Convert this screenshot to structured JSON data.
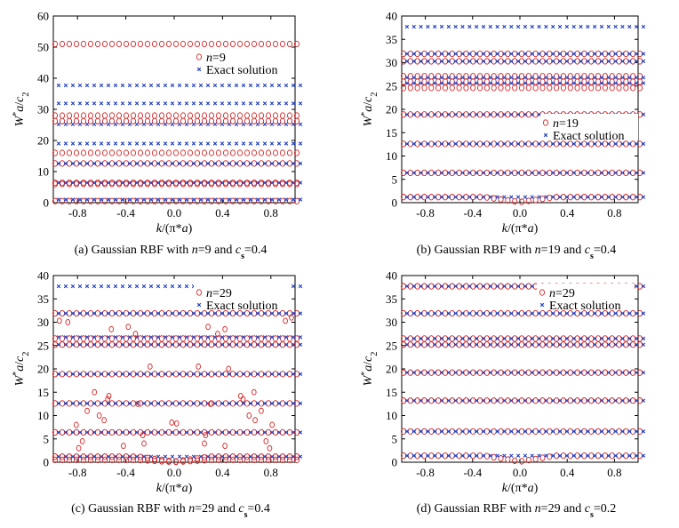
{
  "colors": {
    "model": "#d62728",
    "exact": "#1f3fbf",
    "axis": "#000000"
  },
  "chart_data": [
    {
      "type": "scatter",
      "panel": "a",
      "caption": {
        "prefix": "(a) Gaussian RBF with ",
        "n_label": "n",
        "mid": "=9 and ",
        "c_label": "c",
        "c_sub": "s",
        "suffix": "=0.4"
      },
      "xlabel": {
        "k": "k",
        "pi_open": "/(π*",
        "a": "a",
        "close": ")"
      },
      "ylabel": {
        "W": "W",
        "star": "*",
        "a": "a",
        "slash": "/",
        "c": "c",
        "sub": "2"
      },
      "xlim": [
        -1,
        1
      ],
      "ylim": [
        0,
        60
      ],
      "xticks": [
        "-0.8",
        "-0.4",
        "0.0",
        "0.4",
        "0.8"
      ],
      "yticks": [
        "0",
        "10",
        "20",
        "30",
        "40",
        "50",
        "60"
      ],
      "legend": {
        "placement": "right",
        "model_label": "n",
        "model_value": "=9",
        "exact_label": "Exact solution"
      },
      "series": [
        {
          "name": "n=9",
          "marker": "circle",
          "values": [
            51,
            28,
            26.2,
            16,
            12.6,
            6.4,
            6.0,
            0.5
          ]
        },
        {
          "name": "Exact solution",
          "marker": "x",
          "values": [
            37.7,
            31.9,
            25.2,
            19,
            12.6,
            6.4,
            1
          ]
        }
      ]
    },
    {
      "type": "scatter",
      "panel": "b",
      "caption": {
        "prefix": "(b) Gaussian RBF with ",
        "n_label": "n",
        "mid": "=19 and ",
        "c_label": "c",
        "c_sub": "s",
        "suffix": "=0.4"
      },
      "xlabel": {
        "k": "k",
        "pi_open": "/(π*",
        "a": "a",
        "close": ")"
      },
      "ylabel": {
        "W": "W",
        "star": "*",
        "a": "a",
        "slash": "/",
        "c": "c",
        "sub": "2"
      },
      "xlim": [
        -1,
        1
      ],
      "ylim": [
        0,
        40
      ],
      "xticks": [
        "-0.8",
        "-0.4",
        "0.0",
        "0.4",
        "0.8"
      ],
      "yticks": [
        "0",
        "5",
        "10",
        "15",
        "20",
        "25",
        "30",
        "35",
        "40"
      ],
      "legend": {
        "placement": "right",
        "model_label": "n",
        "model_value": "=19",
        "exact_label": "Exact solution"
      },
      "series": [
        {
          "name": "n=19",
          "marker": "circle",
          "values": [
            31.9,
            30.3,
            27.1,
            25.9,
            24.6,
            18.9,
            12.6,
            6.4,
            1.2
          ]
        },
        {
          "name": "Exact solution",
          "marker": "x",
          "values": [
            37.7,
            31.9,
            30.3,
            26.8,
            25.6,
            18.9,
            12.6,
            6.4,
            1.2
          ]
        }
      ]
    },
    {
      "type": "scatter",
      "panel": "c",
      "caption": {
        "prefix": "(c) Gaussian RBF with ",
        "n_label": "n",
        "mid": "=29 and ",
        "c_label": "c",
        "c_sub": "s",
        "suffix": "=0.4"
      },
      "xlabel": {
        "k": "k",
        "pi_open": "/(π*",
        "a": "a",
        "close": ")"
      },
      "ylabel": {
        "W": "W",
        "star": "*",
        "a": "a",
        "slash": "/",
        "c": "c",
        "sub": "2"
      },
      "xlim": [
        -1,
        1
      ],
      "ylim": [
        0,
        40
      ],
      "xticks": [
        "-0.8",
        "-0.4",
        "0.0",
        "0.4",
        "0.8"
      ],
      "yticks": [
        "0",
        "5",
        "10",
        "15",
        "20",
        "25",
        "30",
        "35",
        "40"
      ],
      "legend": {
        "placement": "right",
        "model_label": "n",
        "model_value": "=29",
        "exact_label": "Exact solution"
      },
      "series": [
        {
          "name": "n=29",
          "marker": "circle",
          "values": [
            31.9,
            26.5,
            25.2,
            18.9,
            12.6,
            6.4,
            1.2,
            0.5
          ]
        },
        {
          "name": "Exact solution",
          "marker": "x",
          "values": [
            37.7,
            31.9,
            26.8,
            25.2,
            18.9,
            12.6,
            6.4,
            1.2
          ]
        }
      ],
      "spurious_points": [
        {
          "x": -0.95,
          "y": 30.3
        },
        {
          "x": -0.88,
          "y": 30.0
        },
        {
          "x": 0.92,
          "y": 30.3
        },
        {
          "x": 0.97,
          "y": 31
        },
        {
          "x": -0.52,
          "y": 28.5
        },
        {
          "x": -0.38,
          "y": 29
        },
        {
          "x": -0.32,
          "y": 27.5
        },
        {
          "x": 0.28,
          "y": 29
        },
        {
          "x": 0.42,
          "y": 28.5
        },
        {
          "x": 0.36,
          "y": 27.5
        },
        {
          "x": -0.66,
          "y": 15
        },
        {
          "x": -0.54,
          "y": 14.2
        },
        {
          "x": -0.55,
          "y": 13.5
        },
        {
          "x": 0.55,
          "y": 14.2
        },
        {
          "x": 0.66,
          "y": 15
        },
        {
          "x": 0.57,
          "y": 13.5
        },
        {
          "x": -0.72,
          "y": 11
        },
        {
          "x": -0.62,
          "y": 10
        },
        {
          "x": -0.58,
          "y": 9
        },
        {
          "x": 0.62,
          "y": 10
        },
        {
          "x": 0.72,
          "y": 11
        },
        {
          "x": 0.67,
          "y": 9
        },
        {
          "x": -0.3,
          "y": 12.5
        },
        {
          "x": 0.3,
          "y": 12.5
        },
        {
          "x": -0.02,
          "y": 8.5
        },
        {
          "x": 0.02,
          "y": 8.3
        },
        {
          "x": -0.81,
          "y": 8
        },
        {
          "x": -0.76,
          "y": 4.5
        },
        {
          "x": -0.79,
          "y": 3
        },
        {
          "x": 0.79,
          "y": 3
        },
        {
          "x": 0.76,
          "y": 4.5
        },
        {
          "x": 0.81,
          "y": 8
        },
        {
          "x": -0.42,
          "y": 3.5
        },
        {
          "x": -0.25,
          "y": 4
        },
        {
          "x": -0.26,
          "y": 5.8
        },
        {
          "x": 0.25,
          "y": 4
        },
        {
          "x": 0.42,
          "y": 3.5
        },
        {
          "x": 0.26,
          "y": 5.8
        },
        {
          "x": -0.2,
          "y": 20.5
        },
        {
          "x": 0.2,
          "y": 20.5
        },
        {
          "x": 0.45,
          "y": 20
        }
      ]
    },
    {
      "type": "scatter",
      "panel": "d",
      "caption": {
        "prefix": "(d) Gaussian RBF with ",
        "n_label": "n",
        "mid": "=29 and ",
        "c_label": "c",
        "c_sub": "s",
        "suffix": "=0.2"
      },
      "xlabel": {
        "k": "k",
        "pi_open": "/(π*",
        "a": "a",
        "close": ")"
      },
      "ylabel": {
        "W": "W",
        "star": "*",
        "a": "a",
        "slash": "/",
        "c": "c",
        "sub": "2"
      },
      "xlim": [
        -1,
        1
      ],
      "ylim": [
        0,
        40
      ],
      "xticks": [
        "-0.8",
        "-0.4",
        "0.0",
        "0.4",
        "0.8"
      ],
      "yticks": [
        "0",
        "5",
        "10",
        "15",
        "20",
        "25",
        "30",
        "35",
        "40"
      ],
      "legend": {
        "placement": "right",
        "model_label": "n",
        "model_value": "=29",
        "exact_label": "Exact solution"
      },
      "series": [
        {
          "name": "n=29",
          "marker": "circle",
          "values": [
            37.7,
            31.9,
            26.5,
            25.2,
            19.2,
            13.2,
            6.6,
            1.4
          ]
        },
        {
          "name": "Exact solution",
          "marker": "x",
          "values": [
            37.7,
            31.9,
            26.5,
            25.2,
            19.2,
            13.2,
            6.6,
            1.4
          ]
        }
      ]
    }
  ]
}
